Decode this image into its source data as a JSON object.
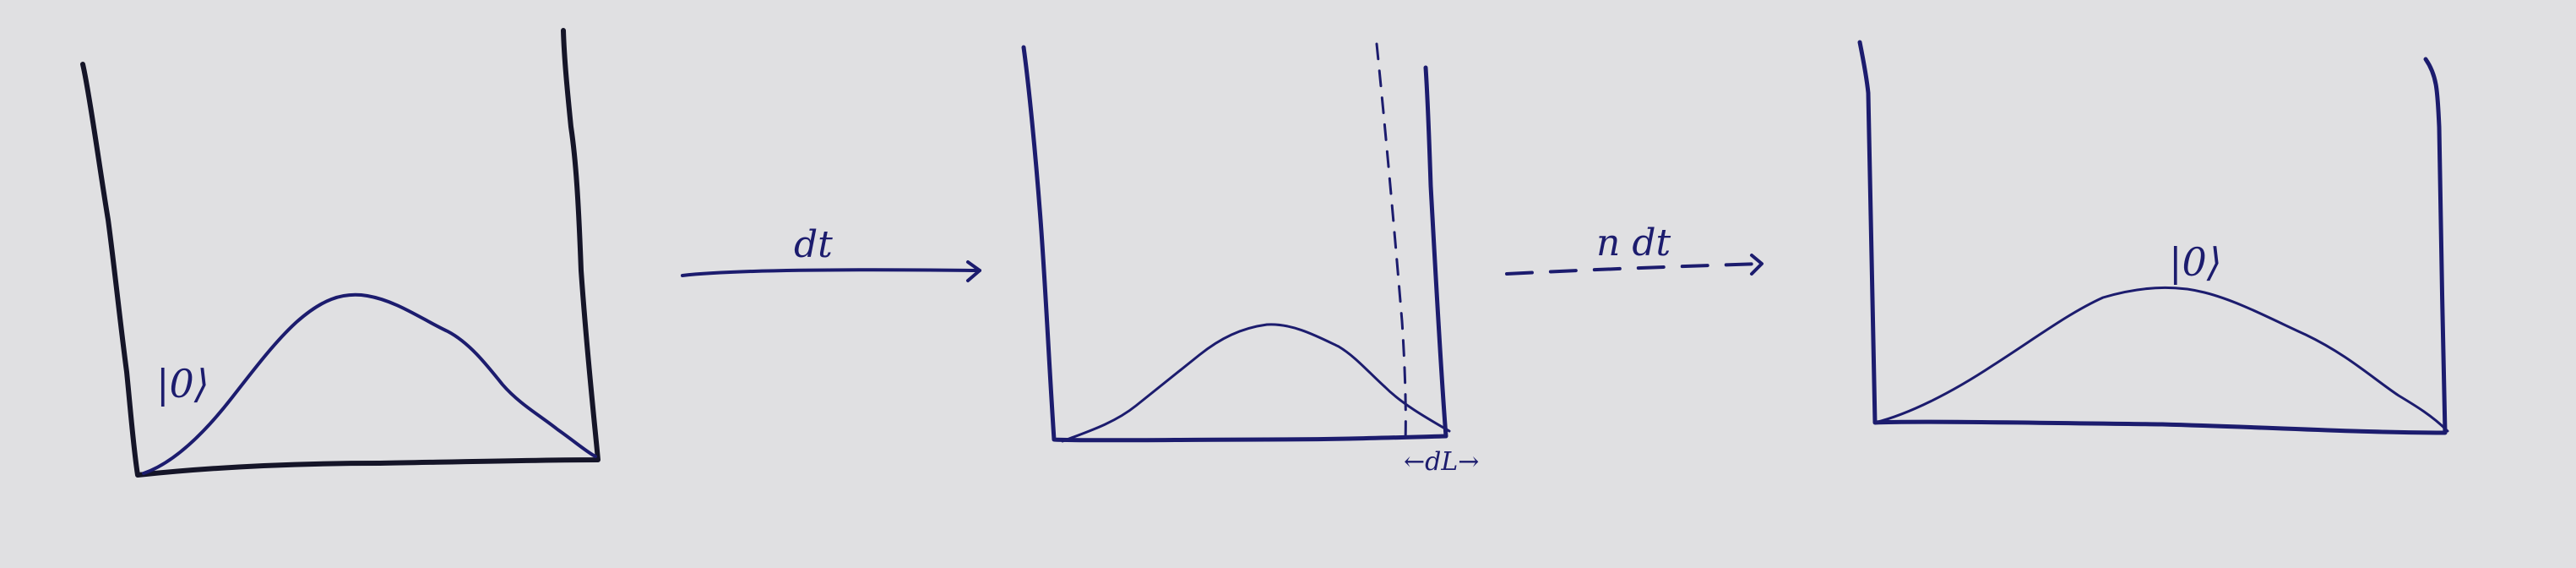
{
  "colors": {
    "background": "#e0e0e2",
    "ink_black": "#151528",
    "ink_blue": "#1c1c6e"
  },
  "panels": [
    {
      "label": "|0⟩"
    },
    {
      "width_label": "←dL→"
    },
    {
      "label": "|0⟩"
    }
  ],
  "arrows": [
    {
      "label": "dt"
    },
    {
      "label": "n dt"
    }
  ]
}
